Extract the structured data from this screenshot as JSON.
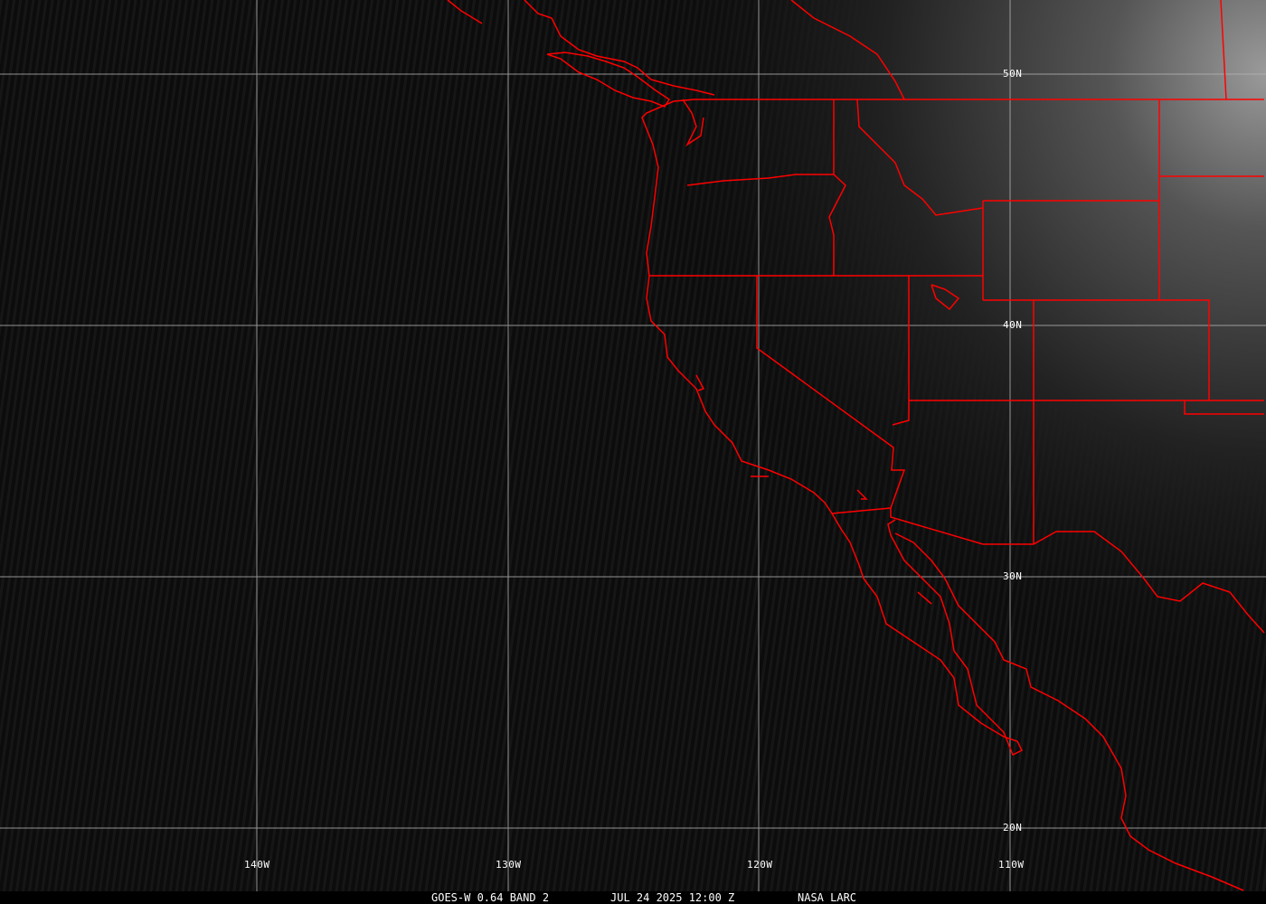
{
  "map": {
    "colors": {
      "borders": "#ff0000",
      "grid": "#b4b4b4",
      "background": "#0c0c0c"
    },
    "lat_labels": [
      "50N",
      "40N",
      "30N",
      "20N"
    ],
    "lon_labels": [
      "140W",
      "130W",
      "120W",
      "110W"
    ]
  },
  "caption": {
    "satellite": "GOES-W 0.64 BAND 2",
    "datetime": "JUL 24 2025 12:00 Z",
    "source": "NASA LARC"
  }
}
